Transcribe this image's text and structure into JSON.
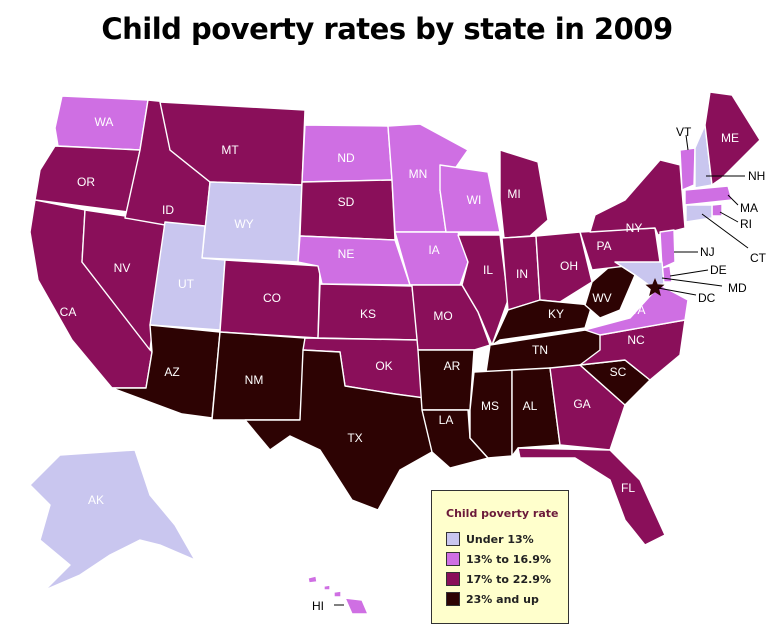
{
  "title": "Child poverty rates by state in 2009",
  "legend": {
    "title": "Child poverty rate",
    "items": [
      {
        "label": "Under 13%",
        "color": "#c9c6ef"
      },
      {
        "label": "13% to 16.9%",
        "color": "#cf6fe3"
      },
      {
        "label": "17% to 22.9%",
        "color": "#8a0f5a"
      },
      {
        "label": "23% and up",
        "color": "#2d0303"
      }
    ]
  },
  "states": [
    {
      "abbr": "WA",
      "category": "13% to 16.9%"
    },
    {
      "abbr": "OR",
      "category": "17% to 22.9%"
    },
    {
      "abbr": "CA",
      "category": "17% to 22.9%"
    },
    {
      "abbr": "NV",
      "category": "17% to 22.9%"
    },
    {
      "abbr": "ID",
      "category": "17% to 22.9%"
    },
    {
      "abbr": "MT",
      "category": "17% to 22.9%"
    },
    {
      "abbr": "WY",
      "category": "Under 13%"
    },
    {
      "abbr": "UT",
      "category": "Under 13%"
    },
    {
      "abbr": "AZ",
      "category": "23% and up"
    },
    {
      "abbr": "CO",
      "category": "17% to 22.9%"
    },
    {
      "abbr": "NM",
      "category": "23% and up"
    },
    {
      "abbr": "ND",
      "category": "13% to 16.9%"
    },
    {
      "abbr": "SD",
      "category": "17% to 22.9%"
    },
    {
      "abbr": "NE",
      "category": "13% to 16.9%"
    },
    {
      "abbr": "KS",
      "category": "17% to 22.9%"
    },
    {
      "abbr": "OK",
      "category": "17% to 22.9%"
    },
    {
      "abbr": "TX",
      "category": "23% and up"
    },
    {
      "abbr": "MN",
      "category": "13% to 16.9%"
    },
    {
      "abbr": "IA",
      "category": "13% to 16.9%"
    },
    {
      "abbr": "MO",
      "category": "17% to 22.9%"
    },
    {
      "abbr": "AR",
      "category": "23% and up"
    },
    {
      "abbr": "LA",
      "category": "23% and up"
    },
    {
      "abbr": "WI",
      "category": "13% to 16.9%"
    },
    {
      "abbr": "IL",
      "category": "17% to 22.9%"
    },
    {
      "abbr": "MI",
      "category": "17% to 22.9%"
    },
    {
      "abbr": "IN",
      "category": "17% to 22.9%"
    },
    {
      "abbr": "OH",
      "category": "17% to 22.9%"
    },
    {
      "abbr": "KY",
      "category": "23% and up"
    },
    {
      "abbr": "TN",
      "category": "23% and up"
    },
    {
      "abbr": "MS",
      "category": "23% and up"
    },
    {
      "abbr": "AL",
      "category": "23% and up"
    },
    {
      "abbr": "GA",
      "category": "17% to 22.9%"
    },
    {
      "abbr": "FL",
      "category": "17% to 22.9%"
    },
    {
      "abbr": "SC",
      "category": "23% and up"
    },
    {
      "abbr": "NC",
      "category": "17% to 22.9%"
    },
    {
      "abbr": "VA",
      "category": "13% to 16.9%"
    },
    {
      "abbr": "WV",
      "category": "23% and up"
    },
    {
      "abbr": "PA",
      "category": "17% to 22.9%"
    },
    {
      "abbr": "NY",
      "category": "17% to 22.9%"
    },
    {
      "abbr": "VT",
      "category": "13% to 16.9%"
    },
    {
      "abbr": "NH",
      "category": "Under 13%"
    },
    {
      "abbr": "ME",
      "category": "17% to 22.9%"
    },
    {
      "abbr": "MA",
      "category": "13% to 16.9%"
    },
    {
      "abbr": "RI",
      "category": "13% to 16.9%"
    },
    {
      "abbr": "CT",
      "category": "Under 13%"
    },
    {
      "abbr": "NJ",
      "category": "13% to 16.9%"
    },
    {
      "abbr": "DE",
      "category": "13% to 16.9%"
    },
    {
      "abbr": "MD",
      "category": "Under 13%"
    },
    {
      "abbr": "DC",
      "category": "23% and up"
    },
    {
      "abbr": "AK",
      "category": "Under 13%"
    },
    {
      "abbr": "HI",
      "category": "13% to 16.9%"
    }
  ]
}
